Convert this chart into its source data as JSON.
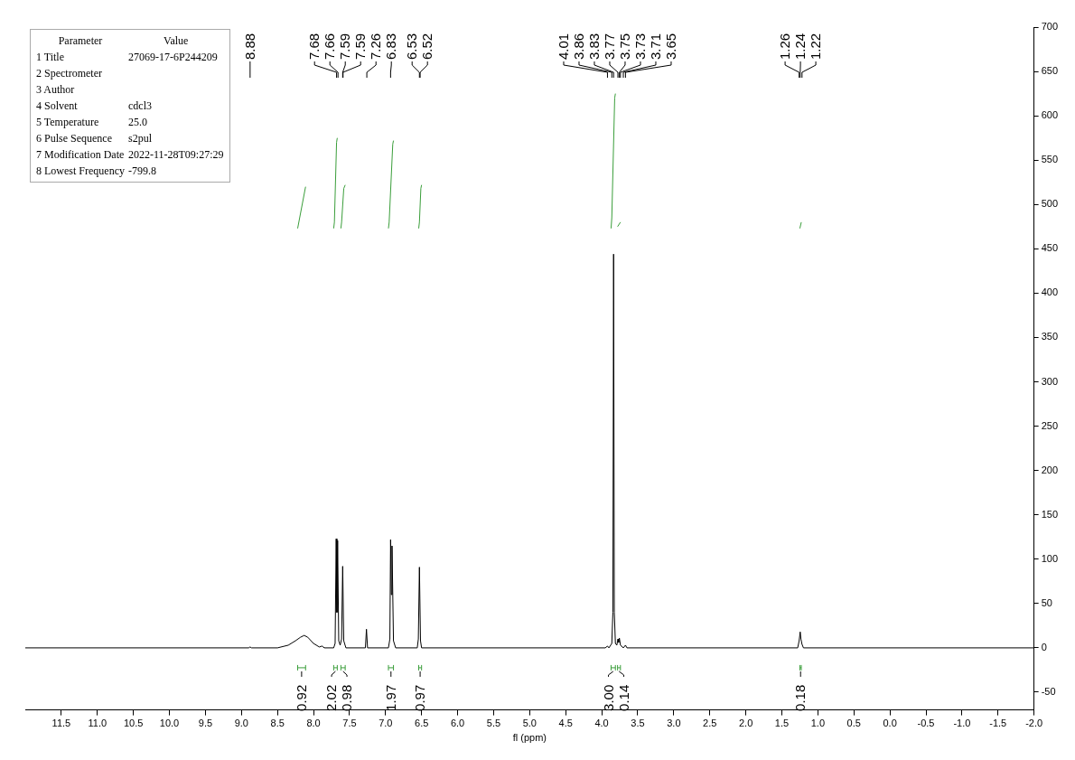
{
  "chart_data": {
    "type": "line",
    "xlabel": "fl (ppm)",
    "xlim": [
      12,
      -2
    ],
    "xticks": [
      {
        "value": 11.5,
        "label": "11.5"
      },
      {
        "value": 11,
        "label": "11.0"
      },
      {
        "value": 10.5,
        "label": "10.5"
      },
      {
        "value": 10,
        "label": "10.0"
      },
      {
        "value": 9.5,
        "label": "9.5"
      },
      {
        "value": 9,
        "label": "9.0"
      },
      {
        "value": 8.5,
        "label": "8.5"
      },
      {
        "value": 8,
        "label": "8.0"
      },
      {
        "value": 7.5,
        "label": "7.5"
      },
      {
        "value": 7,
        "label": "7.0"
      },
      {
        "value": 6.5,
        "label": "6.5"
      },
      {
        "value": 6,
        "label": "6.0"
      },
      {
        "value": 5.5,
        "label": "5.5"
      },
      {
        "value": 5,
        "label": "5.0"
      },
      {
        "value": 4.5,
        "label": "4.5"
      },
      {
        "value": 4,
        "label": "4.0"
      },
      {
        "value": 3.5,
        "label": "3.5"
      },
      {
        "value": 3,
        "label": "3.0"
      },
      {
        "value": 2.5,
        "label": "2.5"
      },
      {
        "value": 2,
        "label": "2.0"
      },
      {
        "value": 1.5,
        "label": "1.5"
      },
      {
        "value": 1,
        "label": "1.0"
      },
      {
        "value": 0.5,
        "label": "0.5"
      },
      {
        "value": 0,
        "label": "0.0"
      },
      {
        "value": -0.5,
        "label": "-0.5"
      },
      {
        "value": -1,
        "label": "-1.0"
      },
      {
        "value": -1.5,
        "label": "-1.5"
      },
      {
        "value": -2,
        "label": "-2.0"
      }
    ],
    "ylim": [
      -70,
      700
    ],
    "yticks": [
      -50,
      0,
      50,
      100,
      150,
      200,
      250,
      300,
      350,
      400,
      450,
      500,
      550,
      600,
      650,
      700
    ],
    "grid": false,
    "marker": "none",
    "series": [
      {
        "color": "#000000",
        "x": [
          12,
          8.9,
          8.88,
          8.86,
          8.5,
          8.35,
          8.25,
          8.18,
          8.13,
          8.08,
          8.0,
          7.92,
          7.88,
          7.85,
          7.72,
          7.7,
          7.685,
          7.675,
          7.665,
          7.65,
          7.63,
          7.61,
          7.595,
          7.58,
          7.55,
          7.28,
          7.265,
          7.25,
          6.96,
          6.94,
          6.93,
          6.92,
          6.91,
          6.89,
          6.86,
          6.56,
          6.545,
          6.53,
          6.515,
          6.5,
          3.95,
          3.92,
          3.9,
          3.86,
          3.845,
          3.835,
          3.825,
          3.81,
          3.79,
          3.775,
          3.765,
          3.755,
          3.74,
          3.7,
          3.67,
          3.65,
          1.28,
          1.26,
          1.245,
          1.235,
          1.22,
          1.2,
          -2
        ],
        "values": [
          0,
          0,
          1,
          0,
          0,
          3,
          8,
          12,
          14,
          12,
          5,
          1,
          2,
          0,
          0,
          5,
          123,
          40,
          121,
          8,
          3,
          10,
          92,
          8,
          0,
          0,
          21,
          0,
          0,
          10,
          122,
          60,
          115,
          8,
          0,
          0,
          10,
          91,
          8,
          0,
          0,
          2,
          0,
          5,
          40,
          444,
          40,
          5,
          3,
          10,
          6,
          11,
          3,
          0,
          3,
          0,
          0,
          8,
          18,
          10,
          4,
          0,
          0
        ]
      },
      {
        "type": "line",
        "color": "#3a9e3a",
        "x": [
          8.22,
          8.11
        ],
        "values": [
          473,
          520
        ]
      },
      {
        "type": "line",
        "color": "#3a9e3a",
        "x": [
          7.72,
          7.71,
          7.68,
          7.67
        ],
        "values": [
          473,
          480,
          570,
          575
        ]
      },
      {
        "type": "line",
        "color": "#3a9e3a",
        "x": [
          7.62,
          7.61,
          7.58,
          7.56
        ],
        "values": [
          473,
          480,
          518,
          522
        ]
      },
      {
        "type": "line",
        "color": "#3a9e3a",
        "x": [
          6.96,
          6.95,
          6.9,
          6.89
        ],
        "values": [
          473,
          480,
          568,
          572
        ]
      },
      {
        "type": "line",
        "color": "#3a9e3a",
        "x": [
          6.54,
          6.53,
          6.51,
          6.5
        ],
        "values": [
          473,
          480,
          518,
          522
        ]
      },
      {
        "type": "line",
        "color": "#3a9e3a",
        "x": [
          3.87,
          3.86,
          3.82,
          3.81
        ],
        "values": [
          473,
          485,
          620,
          625
        ]
      },
      {
        "type": "line",
        "color": "#3a9e3a",
        "x": [
          3.78,
          3.74
        ],
        "values": [
          475,
          480
        ]
      },
      {
        "type": "line",
        "color": "#3a9e3a",
        "x": [
          1.25,
          1.23
        ],
        "values": [
          473,
          480
        ]
      }
    ],
    "annotations": [
      "Parameter\tValue",
      "1 Title\t27069-17-6P244209",
      "2 Spectrometer",
      "3 Author",
      "4 Solvent\tcdcl3",
      "5 Temperature\t25.0",
      "6 Pulse Sequence\ts2pul",
      "7 Modification Date\t2022-11-28T09:27:29",
      "8 Lowest Frequency\t-799.8",
      {
        "text": "8.88",
        "x": 8.88
      },
      {
        "text": "7.68",
        "x": 7.68
      },
      {
        "text": "7.66",
        "x": 7.66
      },
      {
        "text": "7.59",
        "x": 7.595
      },
      {
        "text": "7.59",
        "x": 7.59
      },
      {
        "text": "7.26",
        "x": 7.26
      },
      {
        "text": "6.83",
        "x": 6.93
      },
      {
        "text": "6.53",
        "x": 6.53
      },
      {
        "text": "6.52",
        "x": 6.52
      },
      {
        "text": "4.01",
        "x": 3.92
      },
      {
        "text": "3.86",
        "x": 3.86
      },
      {
        "text": "3.83",
        "x": 3.835
      },
      {
        "text": "3.77",
        "x": 3.775
      },
      {
        "text": "3.75",
        "x": 3.755
      },
      {
        "text": "3.73",
        "x": 3.74
      },
      {
        "text": "3.71",
        "x": 3.7
      },
      {
        "text": "3.65",
        "x": 3.67
      },
      {
        "text": "1.26",
        "x": 1.26
      },
      {
        "text": "1.24",
        "x": 1.245
      },
      {
        "text": "1.22",
        "x": 1.22
      },
      "0.92",
      "2.02",
      "0.98",
      "1.97",
      "0.97",
      "3.00",
      "0.14",
      "0.18"
    ]
  }
}
